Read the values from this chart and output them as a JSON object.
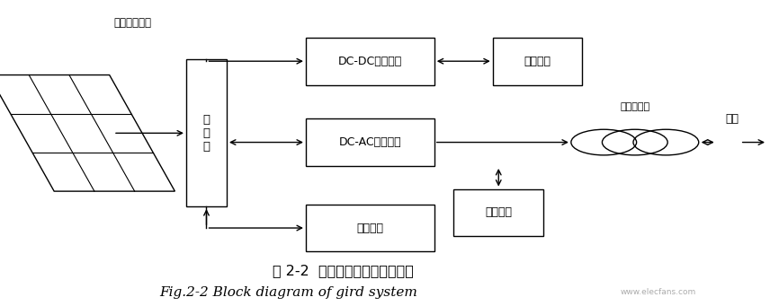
{
  "title_cn": "图 2-2  并网发电系统的结构框图",
  "title_en": "Fig.2-2 Block diagram of gird system",
  "bg_color": "#ffffff",
  "solar_label": "光伏电池阵列",
  "transformer_label": "工频变压器",
  "grid_label": "电网",
  "ctrl_label": "控\n制\n器",
  "dcdc_label": "DC-DC转换电路",
  "dcload_label": "直流负载",
  "dcac_label": "DC-AC逆变电路",
  "acload_label": "交流负载",
  "batt_label": "蓄电池组",
  "watermark": "www.elecfans.com"
}
